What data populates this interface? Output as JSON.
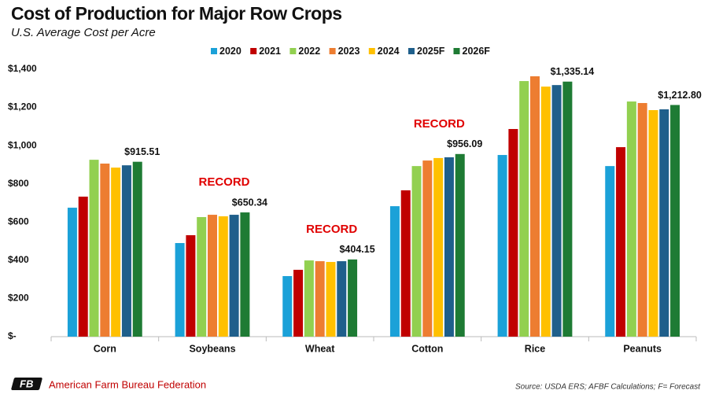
{
  "chart_data": {
    "type": "bar",
    "title": "Cost of Production for Major Row Crops",
    "subtitle": "U.S. Average Cost per Acre",
    "categories": [
      "Corn",
      "Soybeans",
      "Wheat",
      "Cotton",
      "Rice",
      "Peanuts"
    ],
    "series": [
      {
        "name": "2020",
        "color": "#1ba1d8",
        "values": [
          675,
          490,
          317,
          683,
          951,
          893
        ]
      },
      {
        "name": "2021",
        "color": "#c00000",
        "values": [
          733,
          531,
          350,
          766,
          1087,
          992
        ]
      },
      {
        "name": "2022",
        "color": "#92d050",
        "values": [
          926,
          626,
          399,
          893,
          1338,
          1231
        ]
      },
      {
        "name": "2023",
        "color": "#ed7d31",
        "values": [
          906,
          638,
          395,
          922,
          1363,
          1223
        ]
      },
      {
        "name": "2024",
        "color": "#ffc000",
        "values": [
          885,
          630,
          391,
          935,
          1309,
          1186
        ]
      },
      {
        "name": "2025F",
        "color": "#1f5f8b",
        "values": [
          897,
          638,
          395,
          939,
          1317,
          1190
        ]
      },
      {
        "name": "2026F",
        "color": "#1e7b34",
        "values": [
          915.51,
          650.34,
          404.15,
          956.09,
          1335.14,
          1212.8
        ],
        "value_labels": [
          "$915.51",
          "$650.34",
          "$404.15",
          "$956.09",
          "$1,335.14",
          "$1,212.80"
        ]
      }
    ],
    "ylim": [
      0,
      1400
    ],
    "yticks": [
      {
        "value": 0,
        "label": "$-"
      },
      {
        "value": 200,
        "label": "$200"
      },
      {
        "value": 400,
        "label": "$400"
      },
      {
        "value": 600,
        "label": "$600"
      },
      {
        "value": 800,
        "label": "$800"
      },
      {
        "value": 1000,
        "label": "$1,000"
      },
      {
        "value": 1200,
        "label": "$1,200"
      },
      {
        "value": 1400,
        "label": "$1,400"
      }
    ],
    "grid": false,
    "legend": "top",
    "annotations": [
      {
        "text": "RECORD",
        "category": "Soybeans"
      },
      {
        "text": "RECORD",
        "category": "Wheat"
      },
      {
        "text": "RECORD",
        "category": "Cotton"
      }
    ],
    "source": "Source: USDA ERS; AFBF Calculations; F= Forecast",
    "organization": "American Farm Bureau Federation"
  }
}
